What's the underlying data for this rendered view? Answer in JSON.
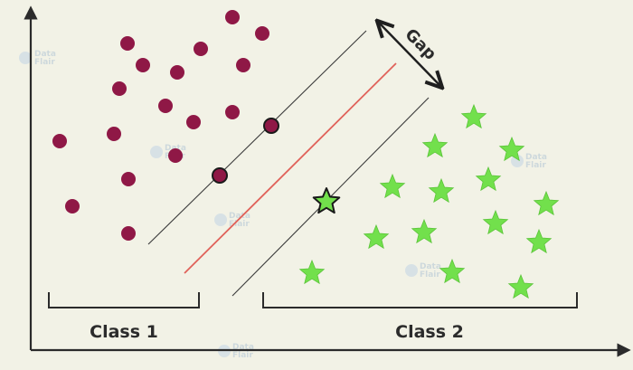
{
  "labels": {
    "class1": "Class 1",
    "class2": "Class 2",
    "gap": "Gap"
  },
  "watermark": {
    "line1": "Data",
    "line2": "Flair"
  },
  "icons": {
    "class1_marker": "circle",
    "class2_marker": "star",
    "support_vector_marker": "outlined-circle / outlined-star"
  },
  "colors": {
    "background": "#f2f2e6",
    "class1": "#8f1846",
    "class2": "#72e04c",
    "hyperplane": "#e0625a",
    "margin_lines": "#3a3a3a",
    "axes": "#2b2b2b"
  }
}
